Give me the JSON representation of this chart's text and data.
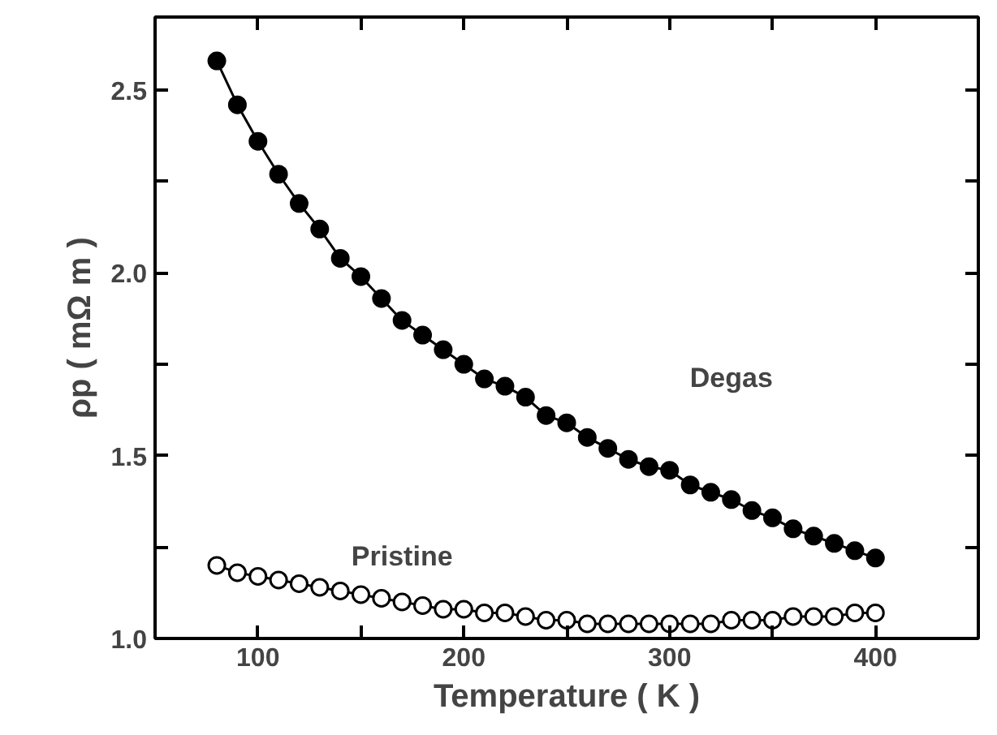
{
  "chart_data": {
    "type": "line",
    "xlabel": "Temperature ( K )",
    "ylabel": "ρp ( mΩ m )",
    "xlim": [
      50,
      450
    ],
    "ylim": [
      1.0,
      2.7
    ],
    "xticks": [
      {
        "value": 50,
        "label": null
      },
      100,
      {
        "value": 150,
        "label": null
      },
      200,
      {
        "value": 250,
        "label": null
      },
      300,
      {
        "value": 350,
        "label": null
      },
      400
    ],
    "yticks": [
      {
        "value": 1.0,
        "label": "1.0"
      },
      {
        "value": 1.25,
        "label": null
      },
      {
        "value": 1.5,
        "label": "1.5"
      },
      {
        "value": 1.75,
        "label": null
      },
      {
        "value": 2.0,
        "label": "2.0"
      },
      {
        "value": 2.25,
        "label": null
      },
      {
        "value": 2.5,
        "label": "2.5"
      }
    ],
    "x": [
      80,
      90,
      100,
      110,
      120,
      130,
      140,
      150,
      160,
      170,
      180,
      190,
      200,
      210,
      220,
      230,
      240,
      250,
      260,
      270,
      280,
      290,
      300,
      310,
      320,
      330,
      340,
      350,
      360,
      370,
      380,
      390,
      400
    ],
    "marker": "circle",
    "line_style": "solid",
    "grid": false,
    "series": [
      {
        "name": "Degas",
        "color": "#000000",
        "values": [
          2.58,
          2.46,
          2.36,
          2.27,
          2.19,
          2.12,
          2.04,
          1.99,
          1.93,
          1.87,
          1.83,
          1.79,
          1.75,
          1.71,
          1.69,
          1.66,
          1.61,
          1.59,
          1.55,
          1.52,
          1.49,
          1.47,
          1.46,
          1.42,
          1.4,
          1.38,
          1.35,
          1.33,
          1.3,
          1.28,
          1.26,
          1.24,
          1.22
        ]
      },
      {
        "name": "Pristine",
        "color": "#ffffff",
        "values": [
          1.2,
          1.18,
          1.17,
          1.16,
          1.15,
          1.14,
          1.13,
          1.12,
          1.11,
          1.1,
          1.09,
          1.08,
          1.08,
          1.07,
          1.07,
          1.06,
          1.05,
          1.05,
          1.04,
          1.04,
          1.04,
          1.04,
          1.04,
          1.04,
          1.04,
          1.05,
          1.05,
          1.05,
          1.06,
          1.06,
          1.06,
          1.07,
          1.07
        ]
      }
    ]
  }
}
